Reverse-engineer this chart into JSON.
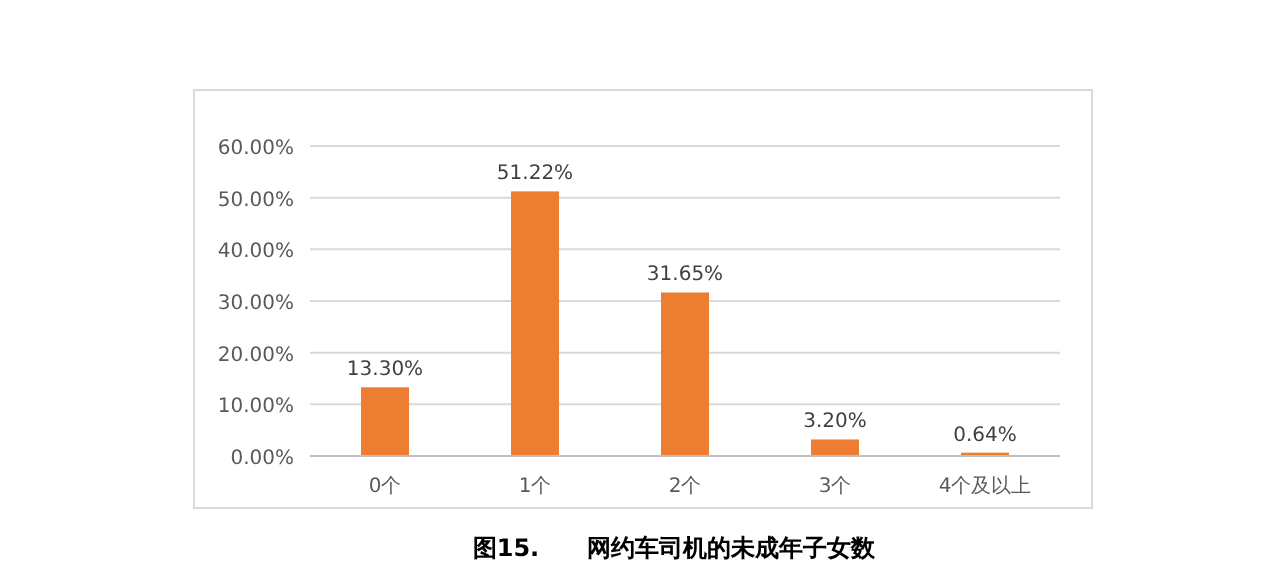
{
  "chart_data": {
    "type": "bar",
    "title": "图15.　　网约车司机的未成年子女数",
    "categories": [
      "0个",
      "1个",
      "2个",
      "3个",
      "4个及以上"
    ],
    "values": [
      13.3,
      51.22,
      31.65,
      3.2,
      0.64
    ],
    "value_labels": [
      "13.30%",
      "51.22%",
      "31.65%",
      "3.20%",
      "0.64%"
    ],
    "color": "#ed7d31",
    "ylim": [
      0,
      60
    ],
    "yticks": [
      {
        "value": 0,
        "label": "0.00%"
      },
      {
        "value": 10,
        "label": "10.00%"
      },
      {
        "value": 20,
        "label": "20.00%"
      },
      {
        "value": 30,
        "label": "30.00%"
      },
      {
        "value": 40,
        "label": "40.00%"
      },
      {
        "value": 50,
        "label": "50.00%"
      },
      {
        "value": 60,
        "label": "60.00%"
      }
    ],
    "grid": true
  }
}
